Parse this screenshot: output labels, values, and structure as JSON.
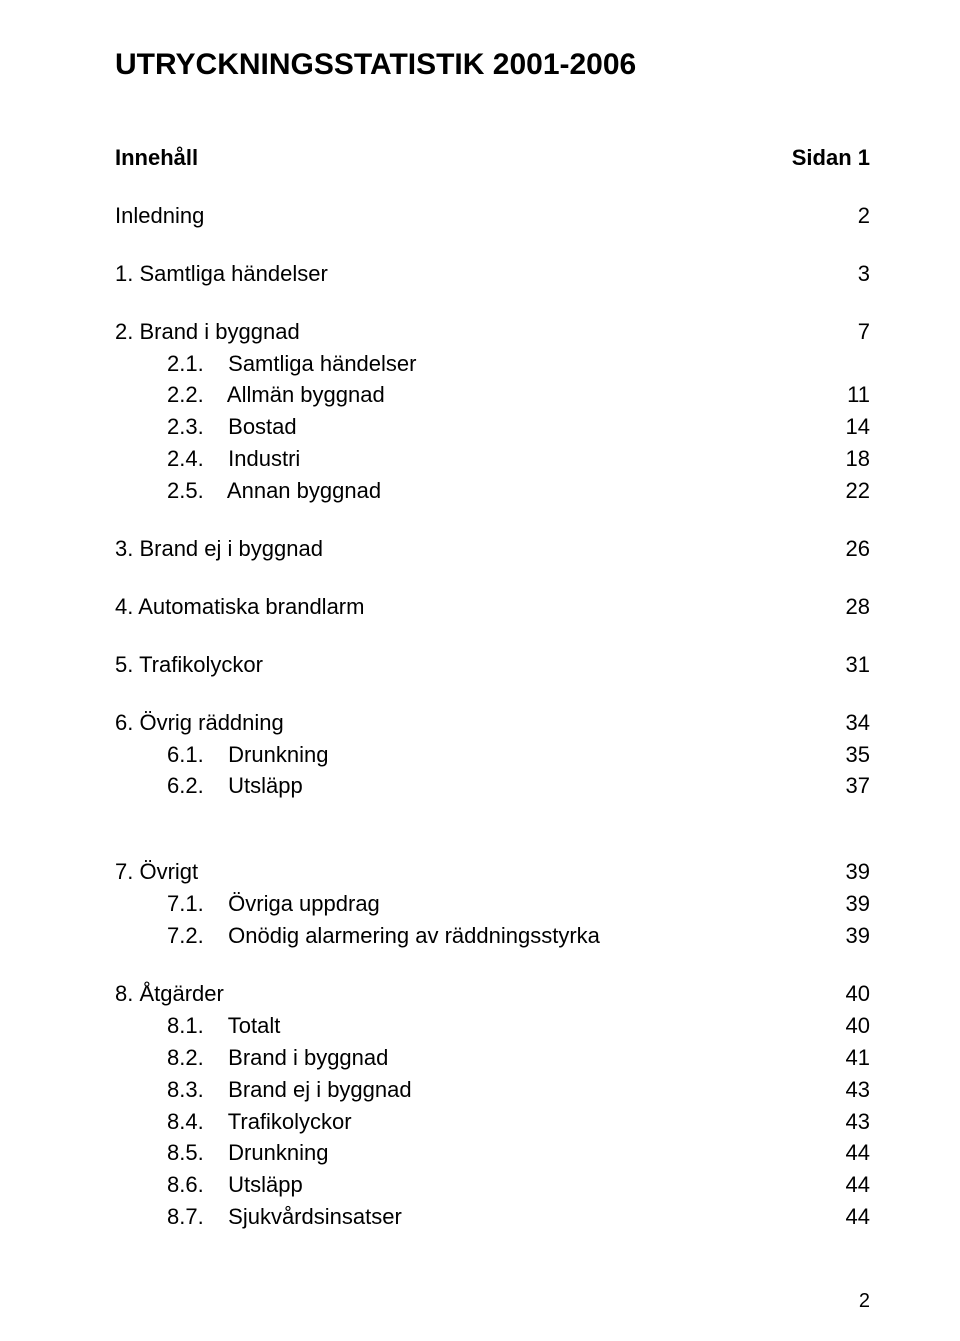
{
  "title": "UTRYCKNINGSSTATISTIK 2001-2006",
  "header": {
    "left": "Innehåll",
    "right": "Sidan 1"
  },
  "rows": [
    {
      "label": "Inledning",
      "num": "2",
      "bold": false,
      "indent": 0
    }
  ],
  "sec1": {
    "label": "1. Samtliga händelser",
    "num": "3"
  },
  "sec2": {
    "head": {
      "label": "2. Brand i byggnad",
      "num": "7"
    },
    "items": [
      {
        "label": "2.1.    Samtliga händelser",
        "num": ""
      },
      {
        "label": "2.2.    Allmän byggnad",
        "num": "11"
      },
      {
        "label": "2.3.    Bostad",
        "num": "14"
      },
      {
        "label": "2.4.    Industri",
        "num": "18"
      },
      {
        "label": "2.5.    Annan byggnad",
        "num": "22"
      }
    ]
  },
  "sec3": {
    "label": "3. Brand ej i byggnad",
    "num": "26"
  },
  "sec4": {
    "label": "4. Automatiska brandlarm",
    "num": "28"
  },
  "sec5": {
    "label": "5. Trafikolyckor",
    "num": "31"
  },
  "sec6": {
    "head": {
      "label": "6. Övrig räddning",
      "num": "34"
    },
    "items": [
      {
        "label": "6.1.    Drunkning",
        "num": "35"
      },
      {
        "label": "6.2.    Utsläpp",
        "num": "37"
      }
    ]
  },
  "sec7": {
    "head": {
      "label": "7. Övrigt",
      "num": "39"
    },
    "items": [
      {
        "label": "7.1.    Övriga uppdrag",
        "num": "39"
      },
      {
        "label": "7.2.    Onödig alarmering av räddningsstyrka",
        "num": "39"
      }
    ]
  },
  "sec8": {
    "head": {
      "label": "8. Åtgärder",
      "num": "40"
    },
    "items": [
      {
        "label": "8.1.    Totalt",
        "num": "40"
      },
      {
        "label": "8.2.    Brand i byggnad",
        "num": "41"
      },
      {
        "label": "8.3.    Brand ej i byggnad",
        "num": "43"
      },
      {
        "label": "8.4.    Trafikolyckor",
        "num": "43"
      },
      {
        "label": "8.5.    Drunkning",
        "num": "44"
      },
      {
        "label": "8.6.    Utsläpp",
        "num": "44"
      },
      {
        "label": "8.7.    Sjukvårdsinsatser",
        "num": "44"
      }
    ]
  },
  "page_number": "2"
}
